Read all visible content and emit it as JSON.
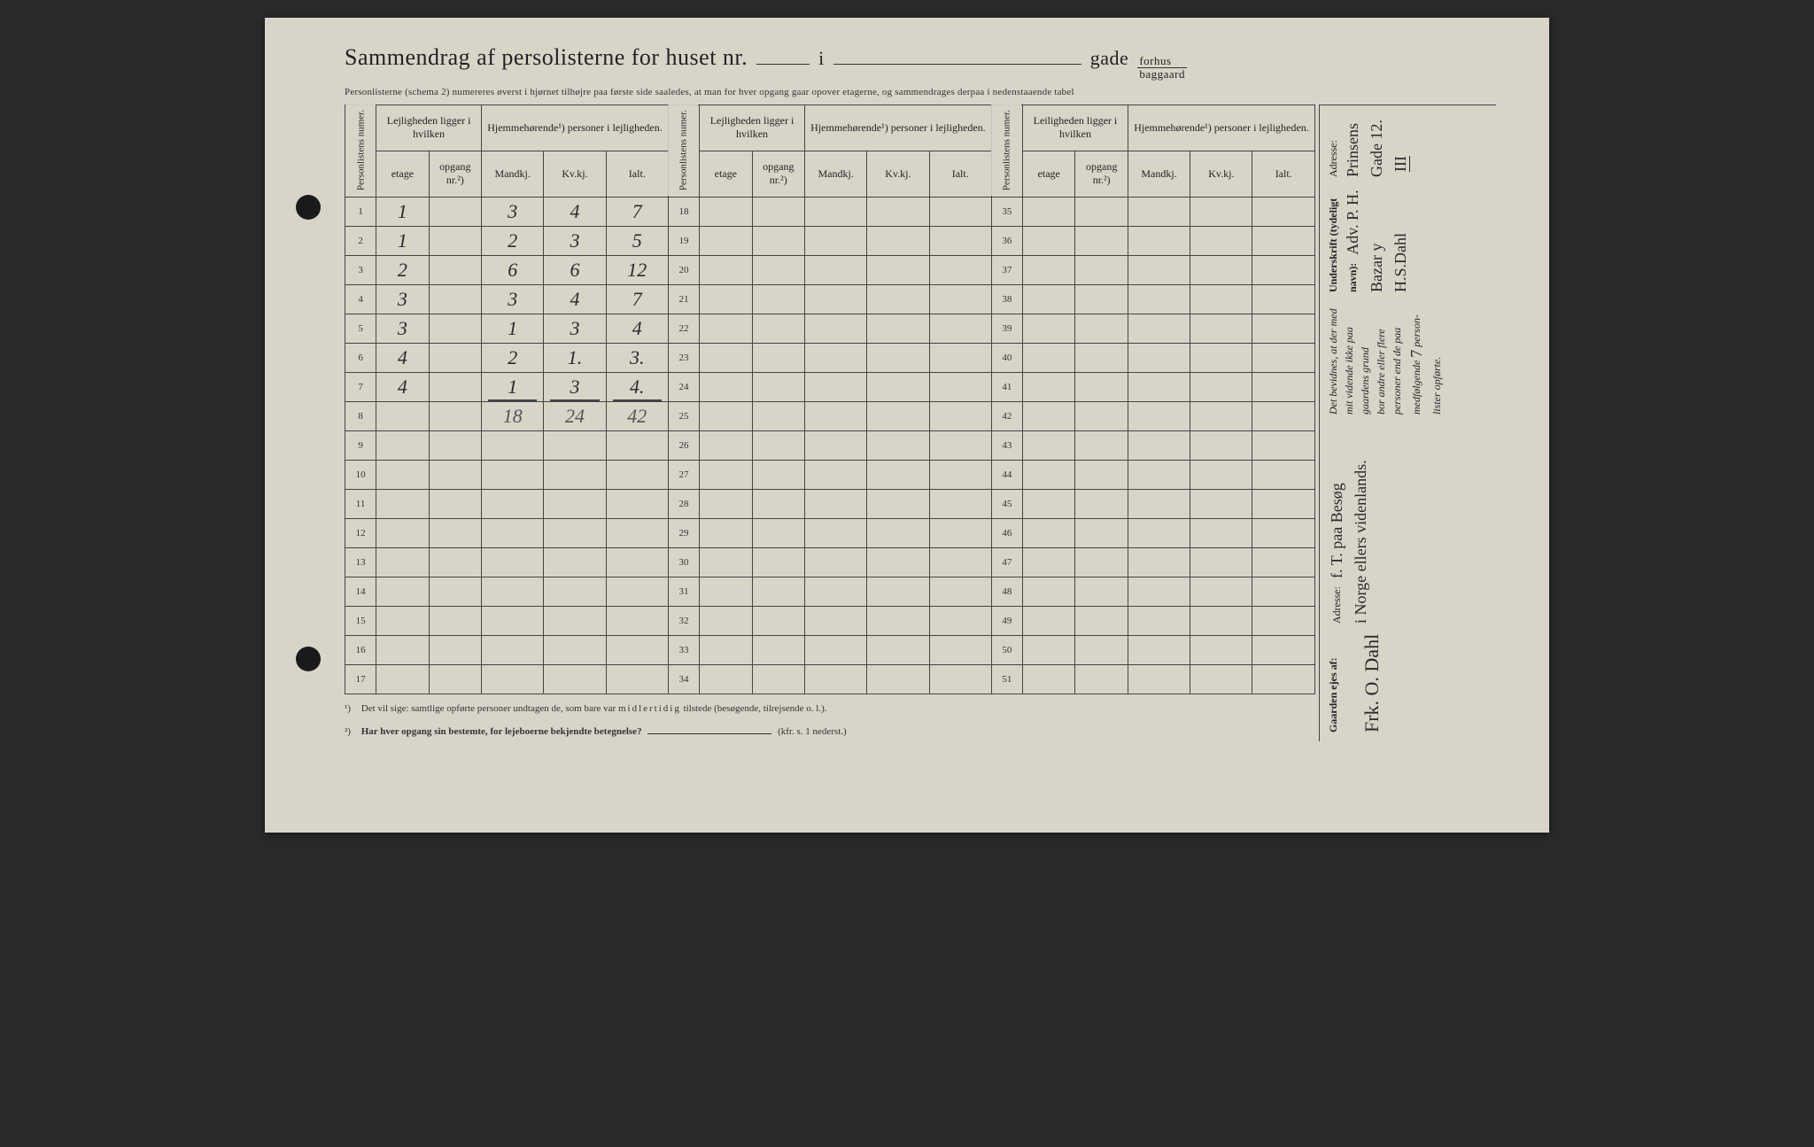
{
  "colors": {
    "paper": "#d8d4c8",
    "ink": "#222222",
    "handwriting": "#2a2a2a",
    "background": "#2a2a2a",
    "border": "#444444",
    "pencil": "#555555"
  },
  "header": {
    "title_prefix": "Sammendrag af perso",
    "title_suffix": "listerne for huset nr.",
    "i_word": "i",
    "gade": "gade",
    "fraction_top": "forhus",
    "fraction_bottom": "baggaard",
    "subtitle": "Personlisterne (schema 2) numereres øverst i hjørnet tilhøjre paa første side saaledes, at man for hver opgang gaar opover etagerne, og sammendrages derpaa i nedenstaaende tabel"
  },
  "column_headers": {
    "personlistens_numer": "Personlistens numer.",
    "lejligheden": "Lejligheden ligger i hvilken",
    "hjemmehorende": "Hjemmehørende¹) personer i lejligheden.",
    "leiligheden": "Leiligheden ligger i hvilken",
    "etage": "etage",
    "opgang": "opgang nr.²)",
    "mandkj": "Mandkj.",
    "kvkj": "Kv.kj.",
    "ialt": "Ialt."
  },
  "rows_block1": [
    {
      "num": "1",
      "etage": "1",
      "opgang": "",
      "m": "3",
      "k": "4",
      "i": "7"
    },
    {
      "num": "2",
      "etage": "1",
      "opgang": "",
      "m": "2",
      "k": "3",
      "i": "5"
    },
    {
      "num": "3",
      "etage": "2",
      "opgang": "",
      "m": "6",
      "k": "6",
      "i": "12"
    },
    {
      "num": "4",
      "etage": "3",
      "opgang": "",
      "m": "3",
      "k": "4",
      "i": "7"
    },
    {
      "num": "5",
      "etage": "3",
      "opgang": "",
      "m": "1",
      "k": "3",
      "i": "4"
    },
    {
      "num": "6",
      "etage": "4",
      "opgang": "",
      "m": "2",
      "k": "1.",
      "i": "3."
    },
    {
      "num": "7",
      "etage": "4",
      "opgang": "",
      "m": "1",
      "k": "3",
      "i": "4."
    },
    {
      "num": "8",
      "etage": "",
      "opgang": "",
      "m": "18",
      "k": "24",
      "i": "42",
      "is_sum": true
    },
    {
      "num": "9"
    },
    {
      "num": "10"
    },
    {
      "num": "11"
    },
    {
      "num": "12"
    },
    {
      "num": "13"
    },
    {
      "num": "14"
    },
    {
      "num": "15"
    },
    {
      "num": "16"
    },
    {
      "num": "17"
    }
  ],
  "rows_block2_nums": [
    "18",
    "19",
    "20",
    "21",
    "22",
    "23",
    "24",
    "25",
    "26",
    "27",
    "28",
    "29",
    "30",
    "31",
    "32",
    "33",
    "34"
  ],
  "rows_block3_nums": [
    "35",
    "36",
    "37",
    "38",
    "39",
    "40",
    "41",
    "42",
    "43",
    "44",
    "45",
    "46",
    "47",
    "48",
    "49",
    "50",
    "51"
  ],
  "footnotes": {
    "fn1": "Det vil sige: samtlige opførte personer undtagen de, som bare var midlertidig tilstede (besøgende, tilrejsende o. l.).",
    "fn1_spaced": "midlertidig",
    "fn2": "Har hver opgang sin bestemte, for lejeboerne bekjendte betegnelse?",
    "fn2_ref": "(kfr. s. 1 nederst.)"
  },
  "side_panel": {
    "attestation_line1": "Det bevidnes, at der med mit vidende ikke paa gaardens grund",
    "attestation_line2": "bor andre eller flere personer end de paa medfølgende",
    "attestation_hw_count": "7",
    "attestation_line3": "person-lister opførte.",
    "underskrift_label": "Underskrift (tydeligt navn):",
    "underskrift_hw": "Adv. P. H. Bazar y H.S.Dahl",
    "adresse_label_top": "Adresse:",
    "adresse_hw_top": "Prinsens Gade 12.",
    "roman": "III",
    "gaarden_label": "Gaarden ejes af:",
    "gaarden_hw": "Frk. O. Dahl",
    "adresse_label_bot": "Adresse:",
    "adresse_hw_bot1": "f. T. paa Besøg",
    "adresse_hw_bot2": "i Norge ellers videnlands."
  }
}
